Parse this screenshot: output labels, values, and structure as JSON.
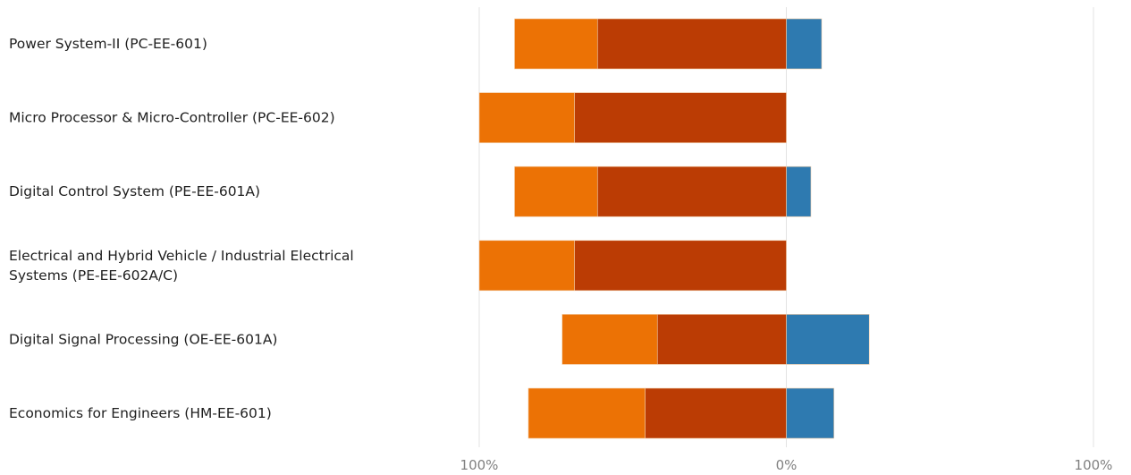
{
  "chart_data": {
    "type": "bar",
    "orientation": "horizontal",
    "stacked": "diverging",
    "title": "",
    "xlabel": "",
    "ylabel": "",
    "xlim": [
      -100,
      100
    ],
    "grid": true,
    "legend": "none",
    "x_tick_labels": [
      "100%",
      "0%",
      "100%"
    ],
    "x_ticks": [
      -100,
      0,
      100
    ],
    "categories": [
      [
        "Power System-II (PC-EE-601)"
      ],
      [
        "Micro Processor & Micro-Controller (PC-EE-602)"
      ],
      [
        "Digital Control System (PE-EE-601A)"
      ],
      [
        "Electrical and Hybrid Vehicle / Industrial Electrical",
        "Systems (PE-EE-602A/C)"
      ],
      [
        "Digital Signal Processing (OE-EE-601A)"
      ],
      [
        "Economics for Engineers (HM-EE-601)"
      ]
    ],
    "series": [
      {
        "color": "#bb3c04",
        "side": "negative",
        "values": [
          61.5,
          69,
          61.5,
          69,
          42,
          46
        ]
      },
      {
        "color": "#ec7205",
        "side": "negative",
        "values": [
          27,
          31,
          27,
          31,
          31,
          38
        ]
      },
      {
        "color": "#2e7ab0",
        "side": "positive",
        "values": [
          11.5,
          0,
          8,
          0,
          27,
          15.5
        ]
      }
    ]
  }
}
